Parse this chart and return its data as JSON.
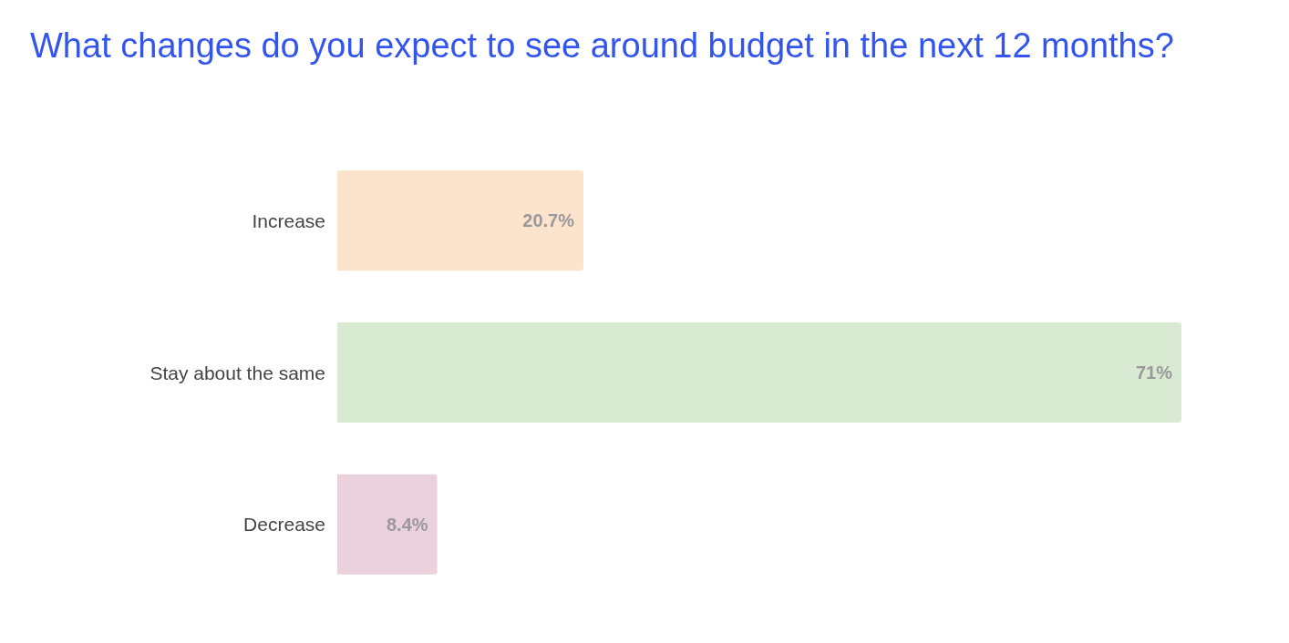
{
  "chart_data": {
    "type": "bar",
    "orientation": "horizontal",
    "title": "What changes do you expect to see around budget in the next 12 months?",
    "categories": [
      "Increase",
      "Stay about the same",
      "Decrease"
    ],
    "values": [
      20.7,
      71,
      8.4
    ],
    "colors": [
      "#fce4cc",
      "#d9ead3",
      "#ead1dc"
    ],
    "value_labels": [
      "20.7%",
      "71%",
      "8.4%"
    ],
    "tick_labels": "y"
  }
}
